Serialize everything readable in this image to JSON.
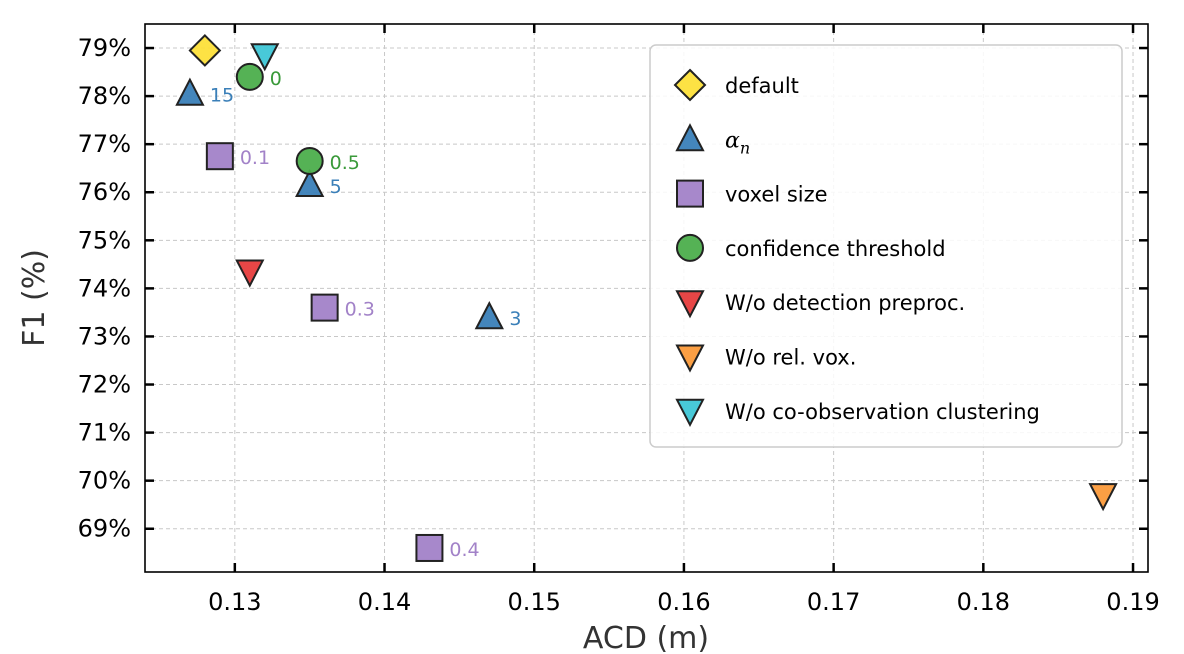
{
  "chart_data": {
    "type": "scatter",
    "xlabel": "ACD (m)",
    "ylabel": "F1 (%)",
    "xlim": [
      0.124,
      0.191
    ],
    "ylim": [
      68.1,
      79.5
    ],
    "grid": true,
    "legend_position": "top-right",
    "x_ticks": [
      {
        "value": 0.13,
        "label": "0.13"
      },
      {
        "value": 0.14,
        "label": "0.14"
      },
      {
        "value": 0.15,
        "label": "0.15"
      },
      {
        "value": 0.16,
        "label": "0.16"
      },
      {
        "value": 0.17,
        "label": "0.17"
      },
      {
        "value": 0.18,
        "label": "0.18"
      },
      {
        "value": 0.19,
        "label": "0.19"
      }
    ],
    "y_ticks": [
      {
        "value": 69,
        "label": "69%"
      },
      {
        "value": 70,
        "label": "70%"
      },
      {
        "value": 71,
        "label": "71%"
      },
      {
        "value": 72,
        "label": "72%"
      },
      {
        "value": 73,
        "label": "73%"
      },
      {
        "value": 74,
        "label": "74%"
      },
      {
        "value": 75,
        "label": "75%"
      },
      {
        "value": 76,
        "label": "76%"
      },
      {
        "value": 77,
        "label": "77%"
      },
      {
        "value": 78,
        "label": "78%"
      },
      {
        "value": 79,
        "label": "79%"
      }
    ],
    "series": [
      {
        "name": "default",
        "marker": "diamond",
        "color": "#fde03a",
        "points": [
          {
            "x": 0.128,
            "y": 78.95,
            "label": ""
          }
        ]
      },
      {
        "name": "α",
        "name_sub": "n",
        "marker": "triangle-up",
        "color": "#3a7fb8",
        "label_color": "#3a7fb8",
        "points": [
          {
            "x": 0.127,
            "y": 78.05,
            "label": "15"
          },
          {
            "x": 0.135,
            "y": 76.15,
            "label": "5"
          },
          {
            "x": 0.147,
            "y": 73.4,
            "label": "3"
          }
        ]
      },
      {
        "name": "voxel size",
        "marker": "square",
        "color": "#a282c8",
        "label_color": "#a282c8",
        "points": [
          {
            "x": 0.129,
            "y": 76.75,
            "label": "0.1"
          },
          {
            "x": 0.136,
            "y": 73.6,
            "label": "0.3"
          },
          {
            "x": 0.143,
            "y": 68.6,
            "label": "0.4"
          }
        ]
      },
      {
        "name": "confidence threshold",
        "marker": "circle",
        "color": "#4cae4c",
        "label_color": "#3a9a3a",
        "points": [
          {
            "x": 0.131,
            "y": 78.4,
            "label": "0"
          },
          {
            "x": 0.135,
            "y": 76.65,
            "label": "0.5"
          }
        ]
      },
      {
        "name": "W/o detection preproc.",
        "marker": "triangle-down",
        "color": "#e63c3c",
        "points": [
          {
            "x": 0.131,
            "y": 74.35,
            "label": ""
          }
        ]
      },
      {
        "name": "W/o rel. vox.",
        "marker": "triangle-down",
        "color": "#fb9a3a",
        "points": [
          {
            "x": 0.188,
            "y": 69.7,
            "label": ""
          }
        ]
      },
      {
        "name": "W/o co-observation clustering",
        "marker": "triangle-down",
        "color": "#3ec6d6",
        "points": [
          {
            "x": 0.132,
            "y": 78.85,
            "label": ""
          }
        ]
      }
    ]
  }
}
